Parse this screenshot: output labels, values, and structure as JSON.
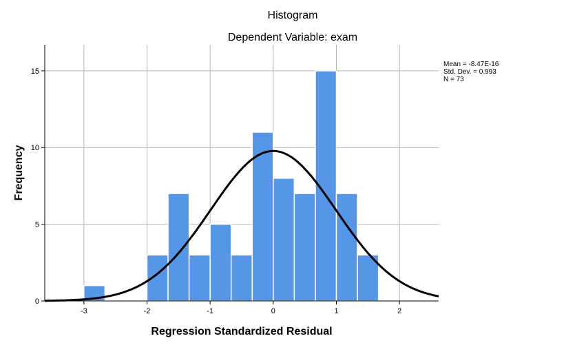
{
  "chart_data": {
    "type": "bar",
    "title": "Histogram",
    "subtitle": "Dependent Variable: exam",
    "xlabel": "Regression Standardized Residual",
    "ylabel": "Frequency",
    "xlim": [
      -3.62,
      2.62
    ],
    "ylim": [
      0,
      16.7
    ],
    "xticks": [
      -3,
      -2,
      -1,
      0,
      1,
      2
    ],
    "yticks": [
      0,
      5,
      10,
      15
    ],
    "grid": true,
    "bar_color": "#5596e6",
    "bins": [
      {
        "from": -3.0,
        "to": -2.667,
        "value": 1
      },
      {
        "from": -2.0,
        "to": -1.667,
        "value": 3
      },
      {
        "from": -1.667,
        "to": -1.333,
        "value": 7
      },
      {
        "from": -1.333,
        "to": -1.0,
        "value": 3
      },
      {
        "from": -1.0,
        "to": -0.667,
        "value": 5
      },
      {
        "from": -0.667,
        "to": -0.333,
        "value": 3
      },
      {
        "from": -0.333,
        "to": 0.0,
        "value": 11
      },
      {
        "from": 0.0,
        "to": 0.333,
        "value": 8
      },
      {
        "from": 0.333,
        "to": 0.667,
        "value": 7
      },
      {
        "from": 0.667,
        "to": 1.0,
        "value": 15
      },
      {
        "from": 1.0,
        "to": 1.333,
        "value": 7
      },
      {
        "from": 1.333,
        "to": 1.667,
        "value": 3
      }
    ],
    "normal_curve": {
      "mean": -8.47e-16,
      "sd": 0.993,
      "n": 73,
      "bin_width": 0.3333
    },
    "legend_placement": "top-right",
    "stats": [
      "Mean = -8.47E-16",
      "Std. Dev. = 0.993",
      "N = 73"
    ]
  }
}
